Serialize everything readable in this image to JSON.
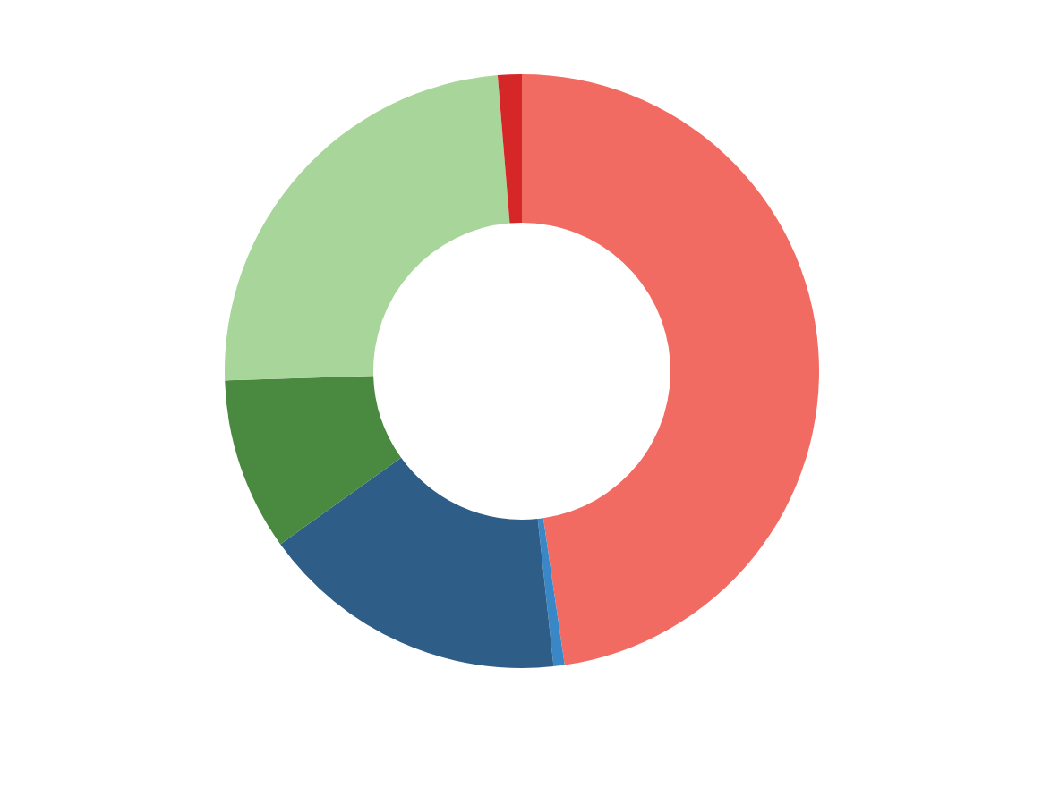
{
  "chart_data": {
    "type": "donut",
    "categories": [
      null,
      null,
      null,
      null,
      null,
      null
    ],
    "values": [
      47.7,
      0.6,
      16.8,
      9.4,
      24.2,
      1.3
    ],
    "colors": [
      "#f26b63",
      "#3a87c8",
      "#2e5d87",
      "#4a8a40",
      "#a8d59a",
      "#d62728"
    ]
  }
}
